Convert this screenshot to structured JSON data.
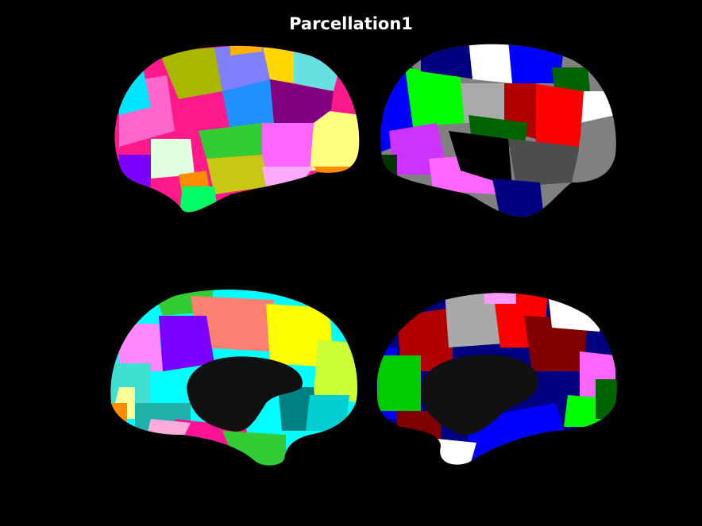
{
  "figure": {
    "title": "Parcellation1",
    "background": "#000000"
  },
  "views": [
    {
      "key": "left-lateral",
      "colors": [
        "#ff1a8c",
        "#ff66cc",
        "#8080ff",
        "#1e90ff",
        "#ffd700",
        "#00e5ff",
        "#800080",
        "#ffff80",
        "#ff66ff",
        "#32cd32",
        "#9acd32",
        "#ff8c00",
        "#00ff66",
        "#e0ffe0",
        "#7b00ff"
      ]
    },
    {
      "key": "right-lateral",
      "colors": [
        "#0000ff",
        "#00ff00",
        "#000080",
        "#ffffff",
        "#ff0000",
        "#b20000",
        "#808080",
        "#006400",
        "#cc33ff",
        "#ff66ff",
        "#000000",
        "#4d4d4d",
        "#aaaaaa",
        "#003300"
      ]
    },
    {
      "key": "left-medial",
      "colors": [
        "#fa8072",
        "#ffff00",
        "#ccff33",
        "#7b00ff",
        "#ff88ff",
        "#00ffff",
        "#00ced1",
        "#40e0d0",
        "#ffff99",
        "#008080",
        "#ff1493",
        "#20b2aa",
        "#ff8c00",
        "#33cc33"
      ]
    },
    {
      "key": "right-medial",
      "colors": [
        "#b20000",
        "#a9a9a9",
        "#ff0000",
        "#800000",
        "#ffffff",
        "#00cc00",
        "#0000ff",
        "#ff66ff",
        "#000080",
        "#ff99ff",
        "#006400",
        "#00ff00"
      ]
    }
  ]
}
